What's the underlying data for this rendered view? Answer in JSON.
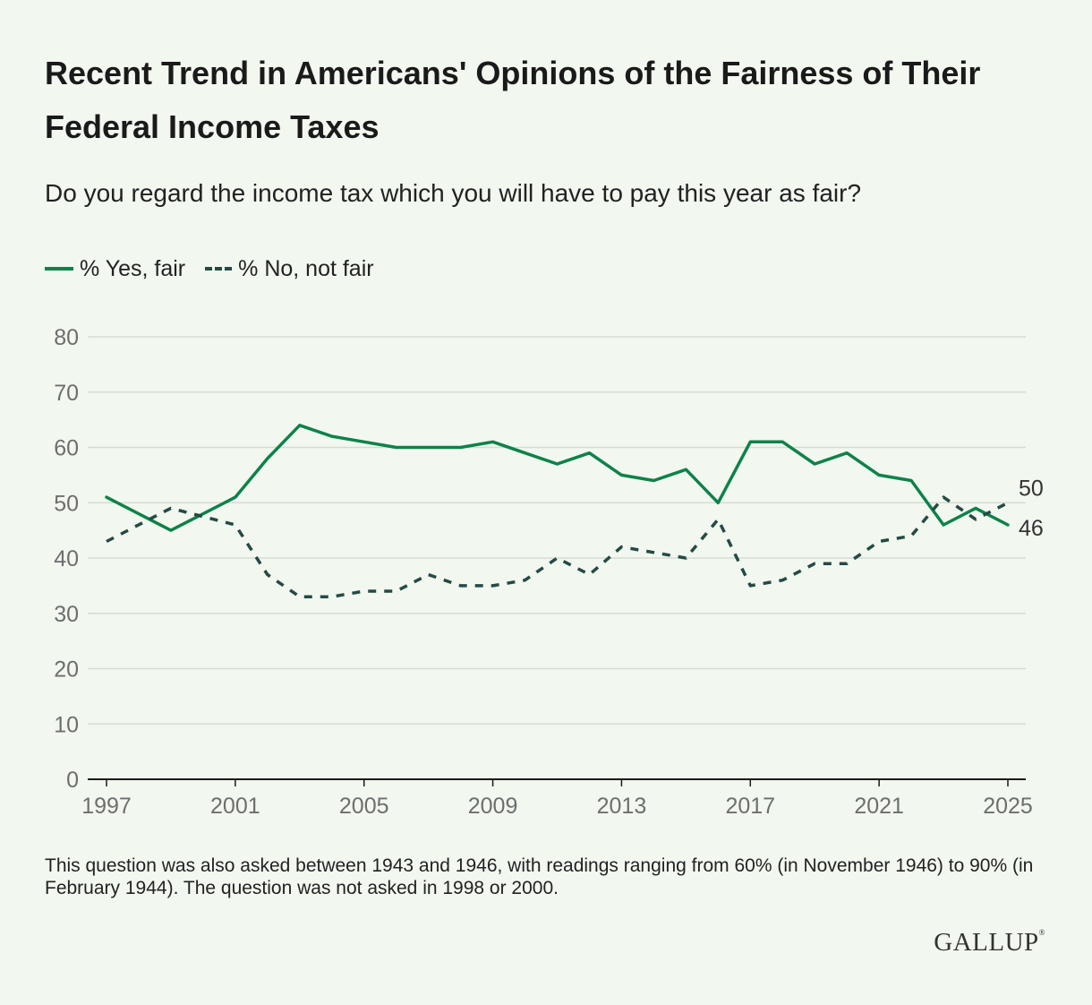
{
  "chart_data": {
    "type": "line",
    "title": "Recent Trend in Americans' Opinions of the Fairness of Their Federal Income Taxes",
    "subtitle": "Do you regard the income tax which you will have to pay this year as fair?",
    "xlabel": "",
    "ylabel": "",
    "ylim": [
      0,
      80
    ],
    "xlim": [
      1997,
      2025
    ],
    "y_ticks": [
      "0",
      "10",
      "20",
      "30",
      "40",
      "50",
      "60",
      "70",
      "80"
    ],
    "x_ticks": [
      "1997",
      "2001",
      "2005",
      "2009",
      "2013",
      "2017",
      "2021",
      "2025"
    ],
    "legend_position": "top-left",
    "grid": "horizontal",
    "series": [
      {
        "name": "% Yes, fair",
        "color": "#0d8249",
        "style": "solid",
        "end_label": "46",
        "points": [
          [
            1997,
            51
          ],
          [
            1999,
            45
          ],
          [
            2001,
            51
          ],
          [
            2002,
            58
          ],
          [
            2003,
            64
          ],
          [
            2004,
            62
          ],
          [
            2005,
            61
          ],
          [
            2006,
            60
          ],
          [
            2007,
            60
          ],
          [
            2008,
            60
          ],
          [
            2009,
            61
          ],
          [
            2010,
            59
          ],
          [
            2011,
            57
          ],
          [
            2012,
            59
          ],
          [
            2013,
            55
          ],
          [
            2014,
            54
          ],
          [
            2015,
            56
          ],
          [
            2016,
            50
          ],
          [
            2017,
            61
          ],
          [
            2018,
            61
          ],
          [
            2019,
            57
          ],
          [
            2020,
            59
          ],
          [
            2021,
            55
          ],
          [
            2022,
            54
          ],
          [
            2023,
            46
          ],
          [
            2024,
            49
          ],
          [
            2025,
            46
          ]
        ]
      },
      {
        "name": "% No, not fair",
        "color": "#244a44",
        "style": "dashed",
        "end_label": "50",
        "points": [
          [
            1997,
            43
          ],
          [
            1999,
            49
          ],
          [
            2001,
            46
          ],
          [
            2002,
            37
          ],
          [
            2003,
            33
          ],
          [
            2004,
            33
          ],
          [
            2005,
            34
          ],
          [
            2006,
            34
          ],
          [
            2007,
            37
          ],
          [
            2008,
            35
          ],
          [
            2009,
            35
          ],
          [
            2010,
            36
          ],
          [
            2011,
            40
          ],
          [
            2012,
            37
          ],
          [
            2013,
            42
          ],
          [
            2014,
            41
          ],
          [
            2015,
            40
          ],
          [
            2016,
            47
          ],
          [
            2017,
            35
          ],
          [
            2018,
            36
          ],
          [
            2019,
            39
          ],
          [
            2020,
            39
          ],
          [
            2021,
            43
          ],
          [
            2022,
            44
          ],
          [
            2023,
            51
          ],
          [
            2024,
            47
          ],
          [
            2025,
            50
          ]
        ]
      }
    ]
  },
  "footnote": "This question was also asked between 1943 and 1946, with readings ranging from 60% (in November 1946) to 90% (in February 1944). The question was not asked in 1998 or 2000.",
  "brand": "GALLUP",
  "brand_mark": "®"
}
